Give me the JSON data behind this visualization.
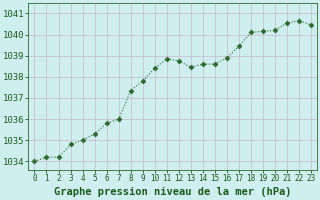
{
  "x": [
    0,
    1,
    2,
    3,
    4,
    5,
    6,
    7,
    8,
    9,
    10,
    11,
    12,
    13,
    14,
    15,
    16,
    17,
    18,
    19,
    20,
    21,
    22,
    23
  ],
  "y": [
    1034.0,
    1034.2,
    1034.2,
    1034.8,
    1035.0,
    1035.3,
    1035.8,
    1036.0,
    1037.35,
    1037.8,
    1038.4,
    1038.85,
    1038.75,
    1038.45,
    1038.6,
    1038.6,
    1038.9,
    1039.45,
    1040.1,
    1040.15,
    1040.2,
    1040.55,
    1040.65,
    1040.45
  ],
  "line_color": "#2d6a2d",
  "marker": "D",
  "marker_size": 2.5,
  "line_width": 0.8,
  "bg_color": "#ceeef0",
  "grid_color": "#c8b8c8",
  "xlabel": "Graphe pression niveau de la mer (hPa)",
  "xlabel_color": "#1a5c1a",
  "xlabel_fontsize": 7.5,
  "ylabel_ticks": [
    1034,
    1035,
    1036,
    1037,
    1038,
    1039,
    1040,
    1041
  ],
  "ytick_fontsize": 6.5,
  "xtick_fontsize": 5.5,
  "xlim": [
    -0.5,
    23.5
  ],
  "ylim": [
    1033.6,
    1041.5
  ],
  "tick_color": "#1a5c1a",
  "axis_color": "#2d6a2d"
}
